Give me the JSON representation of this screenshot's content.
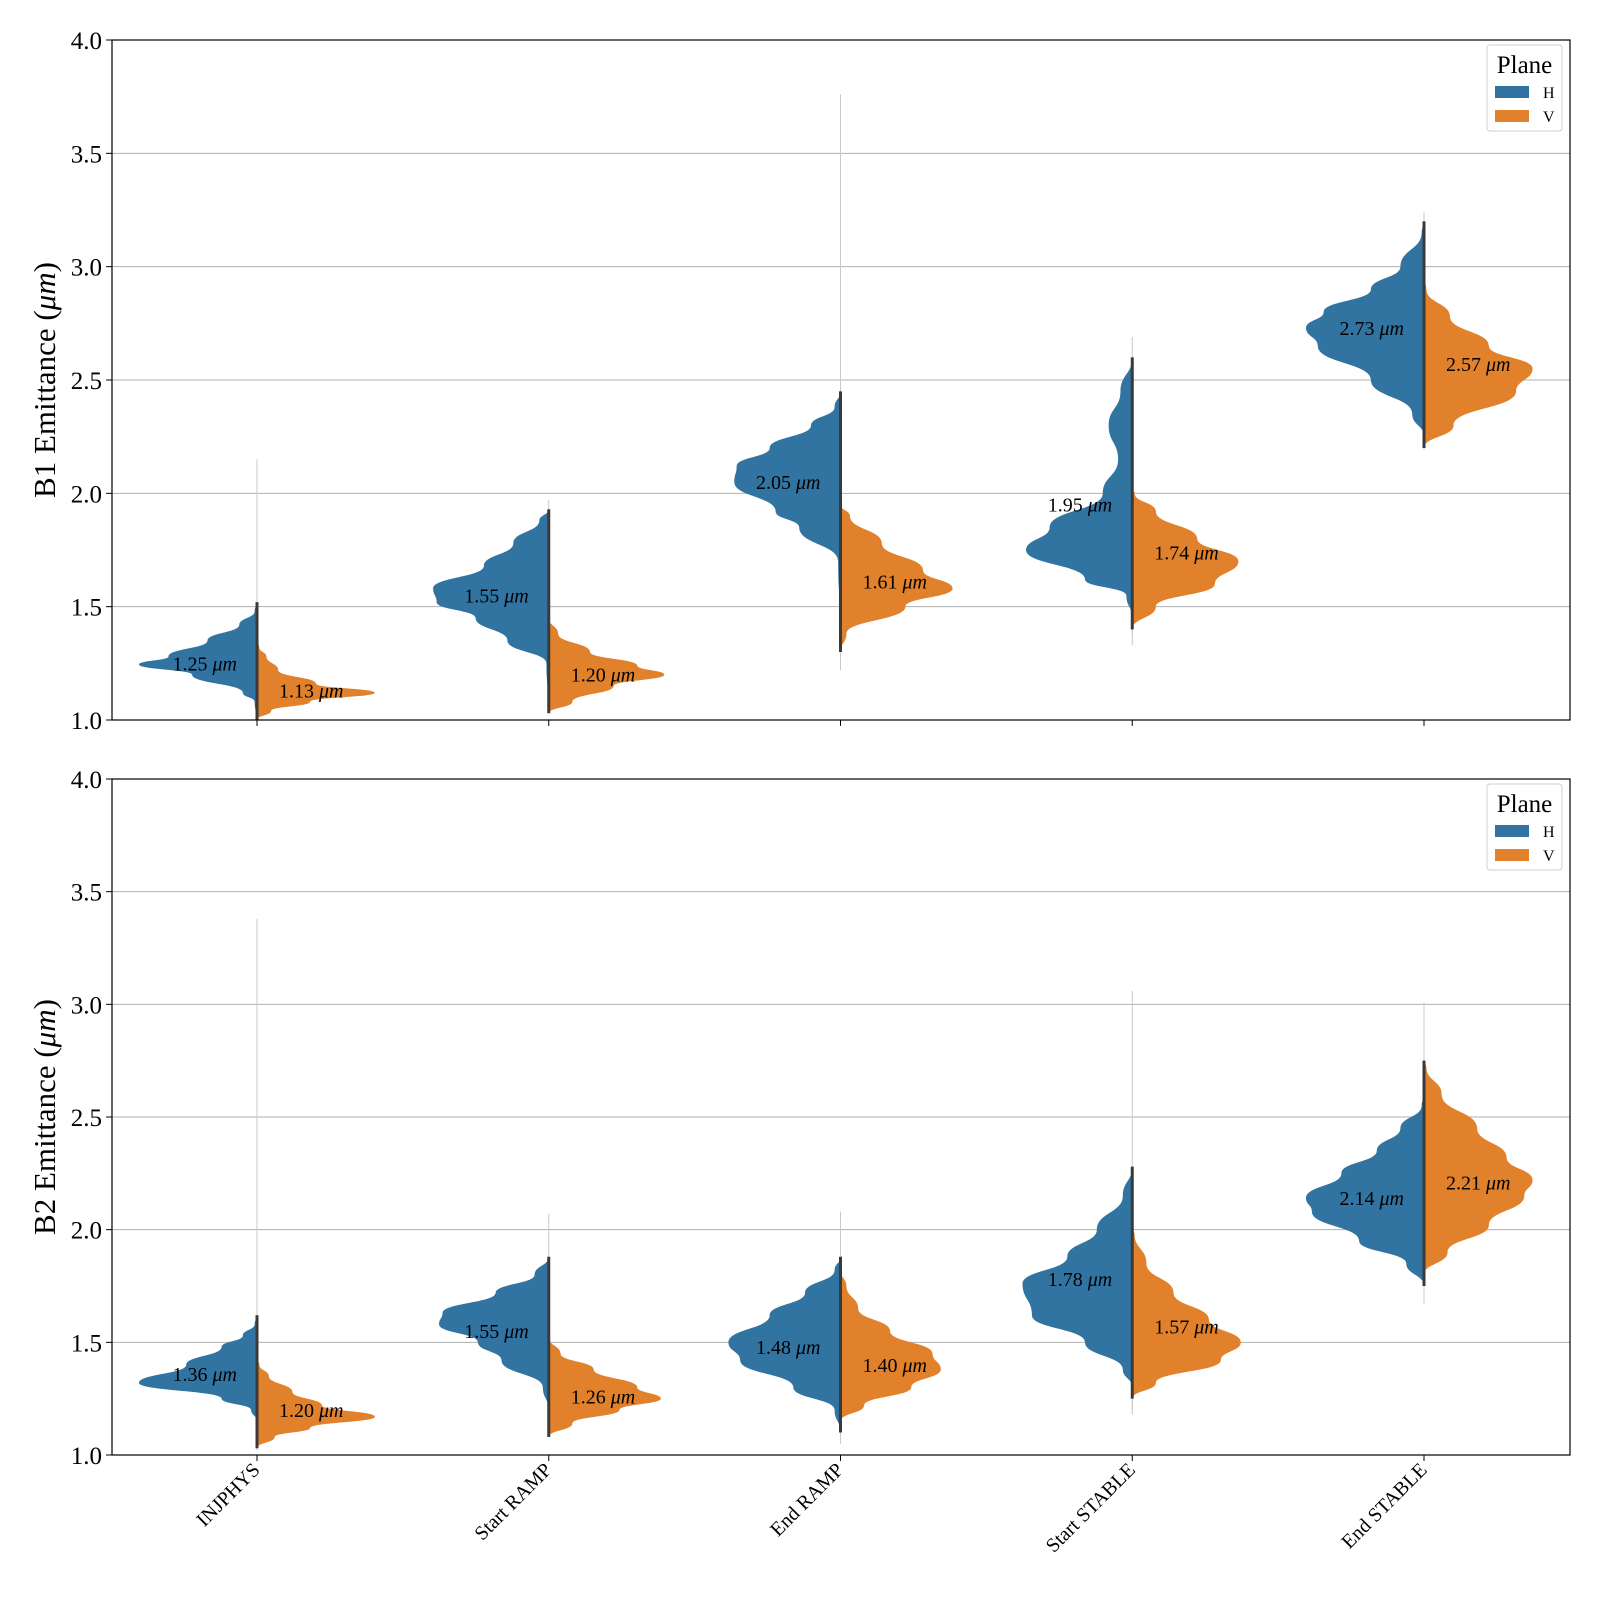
{
  "chart_data": [
    {
      "type": "violin",
      "ylabel_prefix": "B1 Emittance (",
      "ylabel_unit": "μm",
      "ylabel_suffix": ")",
      "ylim": [
        1.0,
        4.0
      ],
      "yticks": [
        "1.0",
        "1.5",
        "2.0",
        "2.5",
        "3.0",
        "3.5",
        "4.0"
      ],
      "grid": true,
      "legend": {
        "title": "Plane",
        "placement": "top-right",
        "entries": [
          "H",
          "V"
        ]
      },
      "categories": [
        "INJPHYS",
        "Start RAMP",
        "End RAMP",
        "Start STABLE",
        "End STABLE"
      ],
      "series": [
        {
          "name": "H",
          "medians": [
            "1.25",
            "1.55",
            "2.05",
            "1.95",
            "2.73"
          ],
          "whisker_ranges": [
            [
              1.0,
              2.15
            ],
            [
              1.05,
              1.97
            ],
            [
              1.25,
              3.76
            ],
            [
              1.38,
              2.69
            ],
            [
              2.2,
              3.24
            ]
          ],
          "density_profiles": [
            [
              [
                1.0,
                0
              ],
              [
                1.08,
                0.02
              ],
              [
                1.12,
                0.12
              ],
              [
                1.2,
                0.55
              ],
              [
                1.245,
                1.0
              ],
              [
                1.28,
                0.75
              ],
              [
                1.35,
                0.42
              ],
              [
                1.42,
                0.15
              ],
              [
                1.48,
                0.02
              ],
              [
                1.52,
                0
              ]
            ],
            [
              [
                1.05,
                0
              ],
              [
                1.25,
                0.02
              ],
              [
                1.35,
                0.35
              ],
              [
                1.45,
                0.62
              ],
              [
                1.52,
                0.95
              ],
              [
                1.58,
                0.98
              ],
              [
                1.68,
                0.55
              ],
              [
                1.78,
                0.3
              ],
              [
                1.88,
                0.08
              ],
              [
                1.93,
                0
              ]
            ],
            [
              [
                1.4,
                0
              ],
              [
                1.7,
                0.02
              ],
              [
                1.85,
                0.35
              ],
              [
                1.92,
                0.55
              ],
              [
                2.05,
                0.9
              ],
              [
                2.12,
                0.88
              ],
              [
                2.2,
                0.6
              ],
              [
                2.3,
                0.25
              ],
              [
                2.38,
                0.05
              ],
              [
                2.45,
                0
              ]
            ],
            [
              [
                1.45,
                0
              ],
              [
                1.55,
                0.05
              ],
              [
                1.62,
                0.4
              ],
              [
                1.75,
                0.9
              ],
              [
                1.85,
                0.7
              ],
              [
                2.0,
                0.25
              ],
              [
                2.15,
                0.12
              ],
              [
                2.3,
                0.2
              ],
              [
                2.45,
                0.1
              ],
              [
                2.6,
                0
              ]
            ],
            [
              [
                2.25,
                0
              ],
              [
                2.35,
                0.1
              ],
              [
                2.5,
                0.45
              ],
              [
                2.65,
                0.9
              ],
              [
                2.73,
                1.0
              ],
              [
                2.8,
                0.85
              ],
              [
                2.9,
                0.45
              ],
              [
                3.0,
                0.2
              ],
              [
                3.15,
                0.02
              ],
              [
                3.2,
                0
              ]
            ]
          ]
        },
        {
          "name": "V",
          "medians": [
            "1.13",
            "1.20",
            "1.61",
            "1.74",
            "2.57"
          ],
          "whisker_ranges": [
            [
              1.0,
              1.4
            ],
            [
              1.03,
              1.45
            ],
            [
              1.22,
              2.0
            ],
            [
              1.33,
              2.05
            ],
            [
              2.19,
              2.95
            ]
          ],
          "density_profiles": [
            [
              [
                1.0,
                0
              ],
              [
                1.04,
                0.12
              ],
              [
                1.08,
                0.45
              ],
              [
                1.12,
                1.0
              ],
              [
                1.16,
                0.5
              ],
              [
                1.22,
                0.18
              ],
              [
                1.28,
                0.08
              ],
              [
                1.32,
                0.02
              ],
              [
                1.35,
                0
              ]
            ],
            [
              [
                1.03,
                0
              ],
              [
                1.08,
                0.2
              ],
              [
                1.15,
                0.55
              ],
              [
                1.2,
                0.98
              ],
              [
                1.24,
                0.75
              ],
              [
                1.3,
                0.35
              ],
              [
                1.38,
                0.08
              ],
              [
                1.45,
                0
              ]
            ],
            [
              [
                1.3,
                0
              ],
              [
                1.38,
                0.05
              ],
              [
                1.5,
                0.55
              ],
              [
                1.58,
                0.95
              ],
              [
                1.66,
                0.7
              ],
              [
                1.78,
                0.35
              ],
              [
                1.9,
                0.08
              ],
              [
                1.95,
                0
              ]
            ],
            [
              [
                1.4,
                0
              ],
              [
                1.5,
                0.2
              ],
              [
                1.6,
                0.7
              ],
              [
                1.7,
                0.9
              ],
              [
                1.8,
                0.55
              ],
              [
                1.92,
                0.2
              ],
              [
                2.0,
                0.02
              ],
              [
                2.02,
                0
              ]
            ],
            [
              [
                2.2,
                0
              ],
              [
                2.3,
                0.25
              ],
              [
                2.45,
                0.78
              ],
              [
                2.55,
                0.92
              ],
              [
                2.65,
                0.55
              ],
              [
                2.78,
                0.22
              ],
              [
                2.9,
                0.02
              ],
              [
                2.95,
                0
              ]
            ]
          ]
        }
      ],
      "median_labels": {
        "H": [
          "1.25 μm",
          "1.55 μm",
          "2.05 μm",
          "1.95 μm",
          "2.73 μm"
        ],
        "V": [
          "1.13 μm",
          "1.20 μm",
          "1.61 μm",
          "1.74 μm",
          "2.57 μm"
        ]
      },
      "colors": {
        "H": "#3274a1",
        "V": "#e1812c"
      }
    },
    {
      "type": "violin",
      "ylabel_prefix": "B2 Emittance (",
      "ylabel_unit": "μm",
      "ylabel_suffix": ")",
      "ylim": [
        1.0,
        4.0
      ],
      "yticks": [
        "1.0",
        "1.5",
        "2.0",
        "2.5",
        "3.0",
        "3.5",
        "4.0"
      ],
      "grid": true,
      "legend": {
        "title": "Plane",
        "placement": "top-right",
        "entries": [
          "H",
          "V"
        ]
      },
      "categories": [
        "INJPHYS",
        "Start RAMP",
        "End RAMP",
        "Start STABLE",
        "End STABLE"
      ],
      "series": [
        {
          "name": "H",
          "medians": [
            "1.36",
            "1.55",
            "1.48",
            "1.78",
            "2.14"
          ],
          "whisker_ranges": [
            [
              1.05,
              3.38
            ],
            [
              1.08,
              2.07
            ],
            [
              1.05,
              2.08
            ],
            [
              1.18,
              3.06
            ],
            [
              1.67,
              3.01
            ]
          ],
          "density_profiles": [
            [
              [
                1.15,
                0
              ],
              [
                1.2,
                0.05
              ],
              [
                1.25,
                0.3
              ],
              [
                1.32,
                1.0
              ],
              [
                1.4,
                0.6
              ],
              [
                1.48,
                0.3
              ],
              [
                1.53,
                0.12
              ],
              [
                1.58,
                0.02
              ],
              [
                1.62,
                0
              ]
            ],
            [
              [
                1.2,
                0
              ],
              [
                1.3,
                0.05
              ],
              [
                1.42,
                0.4
              ],
              [
                1.5,
                0.6
              ],
              [
                1.58,
                0.93
              ],
              [
                1.63,
                0.9
              ],
              [
                1.72,
                0.45
              ],
              [
                1.8,
                0.12
              ],
              [
                1.88,
                0
              ]
            ],
            [
              [
                1.1,
                0
              ],
              [
                1.2,
                0.05
              ],
              [
                1.3,
                0.4
              ],
              [
                1.42,
                0.85
              ],
              [
                1.5,
                0.95
              ],
              [
                1.62,
                0.6
              ],
              [
                1.72,
                0.3
              ],
              [
                1.82,
                0.05
              ],
              [
                1.88,
                0
              ]
            ],
            [
              [
                1.3,
                0
              ],
              [
                1.38,
                0.08
              ],
              [
                1.5,
                0.4
              ],
              [
                1.62,
                0.85
              ],
              [
                1.76,
                0.93
              ],
              [
                1.88,
                0.55
              ],
              [
                2.0,
                0.3
              ],
              [
                2.15,
                0.08
              ],
              [
                2.28,
                0
              ]
            ],
            [
              [
                1.75,
                0
              ],
              [
                1.85,
                0.15
              ],
              [
                1.95,
                0.55
              ],
              [
                2.08,
                0.95
              ],
              [
                2.14,
                1.0
              ],
              [
                2.25,
                0.7
              ],
              [
                2.35,
                0.4
              ],
              [
                2.45,
                0.2
              ],
              [
                2.55,
                0.02
              ],
              [
                2.6,
                0
              ]
            ]
          ]
        },
        {
          "name": "V",
          "medians": [
            "1.20",
            "1.26",
            "1.40",
            "1.57",
            "2.21"
          ],
          "whisker_ranges": [
            [
              1.02,
              1.42
            ],
            [
              1.08,
              1.52
            ],
            [
              1.08,
              1.82
            ],
            [
              1.2,
              2.0
            ],
            [
              1.8,
              2.75
            ]
          ],
          "density_profiles": [
            [
              [
                1.03,
                0
              ],
              [
                1.08,
                0.15
              ],
              [
                1.12,
                0.45
              ],
              [
                1.17,
                1.0
              ],
              [
                1.22,
                0.55
              ],
              [
                1.28,
                0.3
              ],
              [
                1.35,
                0.1
              ],
              [
                1.4,
                0.02
              ],
              [
                1.43,
                0
              ]
            ],
            [
              [
                1.08,
                0
              ],
              [
                1.14,
                0.2
              ],
              [
                1.2,
                0.6
              ],
              [
                1.25,
                0.95
              ],
              [
                1.3,
                0.75
              ],
              [
                1.38,
                0.38
              ],
              [
                1.45,
                0.1
              ],
              [
                1.52,
                0
              ]
            ],
            [
              [
                1.15,
                0
              ],
              [
                1.22,
                0.2
              ],
              [
                1.3,
                0.6
              ],
              [
                1.38,
                0.85
              ],
              [
                1.45,
                0.78
              ],
              [
                1.55,
                0.42
              ],
              [
                1.65,
                0.15
              ],
              [
                1.75,
                0.05
              ],
              [
                1.82,
                0
              ]
            ],
            [
              [
                1.25,
                0
              ],
              [
                1.32,
                0.2
              ],
              [
                1.42,
                0.75
              ],
              [
                1.5,
                0.92
              ],
              [
                1.6,
                0.65
              ],
              [
                1.72,
                0.35
              ],
              [
                1.85,
                0.12
              ],
              [
                1.98,
                0.02
              ],
              [
                2.0,
                0
              ]
            ],
            [
              [
                1.8,
                0
              ],
              [
                1.9,
                0.2
              ],
              [
                2.02,
                0.55
              ],
              [
                2.15,
                0.85
              ],
              [
                2.22,
                0.92
              ],
              [
                2.32,
                0.7
              ],
              [
                2.45,
                0.45
              ],
              [
                2.6,
                0.15
              ],
              [
                2.72,
                0.02
              ],
              [
                2.75,
                0
              ]
            ]
          ]
        }
      ],
      "median_labels": {
        "H": [
          "1.36 μm",
          "1.55 μm",
          "1.48 μm",
          "1.78 μm",
          "2.14 μm"
        ],
        "V": [
          "1.20 μm",
          "1.26 μm",
          "1.40 μm",
          "1.57 μm",
          "2.21 μm"
        ]
      },
      "colors": {
        "H": "#3274a1",
        "V": "#e1812c"
      }
    }
  ]
}
